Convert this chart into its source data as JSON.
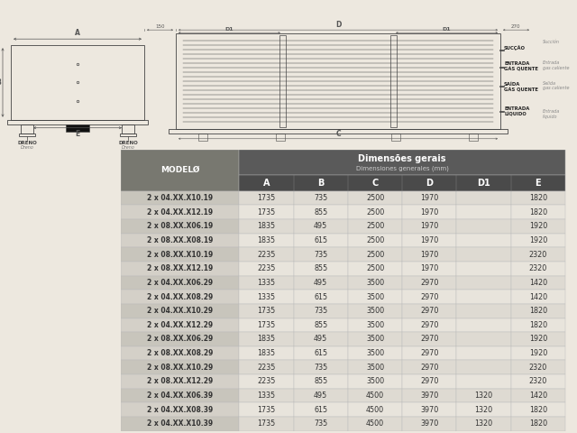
{
  "bg_color": "#ede8df",
  "table_header_bg": "#5a5a5a",
  "table_col_header_bg": "#4a4a4a",
  "table_row_odd_bg": "#dedad2",
  "table_row_even_bg": "#eae6de",
  "table_model_odd_bg": "#c8c4bc",
  "table_model_even_bg": "#d4d0c8",
  "header_title": "Dimensões gerais",
  "header_subtitle": "Dimensiones generales (mm)",
  "col_headers": [
    "A",
    "B",
    "C",
    "D",
    "D1",
    "E"
  ],
  "model_col_header": "MODELØ",
  "rows": [
    [
      "2 x 04.XX.X10.19",
      "1735",
      "735",
      "2500",
      "1970",
      "",
      "1820"
    ],
    [
      "2 x 04.XX.X12.19",
      "1735",
      "855",
      "2500",
      "1970",
      "",
      "1820"
    ],
    [
      "2 x 08.XX.X06.19",
      "1835",
      "495",
      "2500",
      "1970",
      "",
      "1920"
    ],
    [
      "2 x 08.XX.X08.19",
      "1835",
      "615",
      "2500",
      "1970",
      "",
      "1920"
    ],
    [
      "2 x 08.XX.X10.19",
      "2235",
      "735",
      "2500",
      "1970",
      "",
      "2320"
    ],
    [
      "2 x 08.XX.X12.19",
      "2235",
      "855",
      "2500",
      "1970",
      "",
      "2320"
    ],
    [
      "2 x 04.XX.X06.29",
      "1335",
      "495",
      "3500",
      "2970",
      "",
      "1420"
    ],
    [
      "2 x 04.XX.X08.29",
      "1335",
      "615",
      "3500",
      "2970",
      "",
      "1420"
    ],
    [
      "2 x 04.XX.X10.29",
      "1735",
      "735",
      "3500",
      "2970",
      "",
      "1820"
    ],
    [
      "2 x 04.XX.X12.29",
      "1735",
      "855",
      "3500",
      "2970",
      "",
      "1820"
    ],
    [
      "2 x 08.XX.X06.29",
      "1835",
      "495",
      "3500",
      "2970",
      "",
      "1920"
    ],
    [
      "2 x 08.XX.X08.29",
      "1835",
      "615",
      "3500",
      "2970",
      "",
      "1920"
    ],
    [
      "2 x 08.XX.X10.29",
      "2235",
      "735",
      "3500",
      "2970",
      "",
      "2320"
    ],
    [
      "2 x 08.XX.X12.29",
      "2235",
      "855",
      "3500",
      "2970",
      "",
      "2320"
    ],
    [
      "2 x 04.XX.X06.39",
      "1335",
      "495",
      "4500",
      "3970",
      "1320",
      "1420"
    ],
    [
      "2 x 04.XX.X08.39",
      "1735",
      "615",
      "4500",
      "3970",
      "1320",
      "1820"
    ],
    [
      "2 x 04.XX.X10.39",
      "1735",
      "735",
      "4500",
      "3970",
      "1320",
      "1820"
    ]
  ],
  "line_color": "#444444",
  "dim_color": "#555555"
}
